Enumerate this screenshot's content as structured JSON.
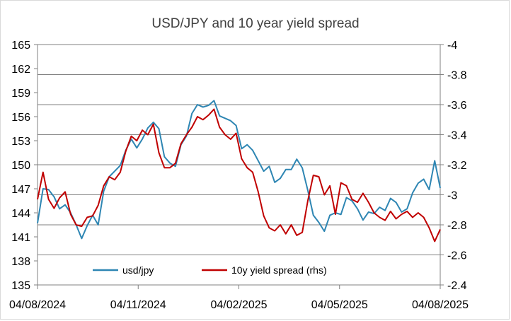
{
  "chart_data": {
    "type": "line",
    "title": "USD/JPY and 10 year yield spread",
    "x_tick_labels": [
      "04/08/2024",
      "04/11/2024",
      "04/02/2025",
      "04/05/2025",
      "04/08/2025"
    ],
    "x_range": [
      "2024-08-04",
      "2025-08-04"
    ],
    "y_left": {
      "range": [
        135,
        165
      ],
      "ticks": [
        "135",
        "138",
        "141",
        "144",
        "147",
        "150",
        "153",
        "156",
        "159",
        "162",
        "165"
      ]
    },
    "y_right": {
      "range": [
        -4.0,
        -2.4
      ],
      "ticks": [
        "-2.4",
        "-2.6",
        "-2.8",
        "-3",
        "-3.2",
        "-3.4",
        "-3.6",
        "-3.8",
        "-4"
      ],
      "reversed": true
    },
    "grid": "horizontal (right axis)",
    "legend_position": "bottom-inside",
    "series": [
      {
        "name": "usd/jpy",
        "axis": "left",
        "color": "#2e86b3",
        "points": [
          [
            "2024-08-04",
            142.7
          ],
          [
            "2024-08-09",
            147.0
          ],
          [
            "2024-08-14",
            146.9
          ],
          [
            "2024-08-19",
            146.0
          ],
          [
            "2024-08-24",
            144.5
          ],
          [
            "2024-08-29",
            145.0
          ],
          [
            "2024-09-03",
            144.0
          ],
          [
            "2024-09-08",
            142.5
          ],
          [
            "2024-09-13",
            140.8
          ],
          [
            "2024-09-18",
            142.4
          ],
          [
            "2024-09-23",
            143.7
          ],
          [
            "2024-09-28",
            142.5
          ],
          [
            "2024-10-03",
            146.7
          ],
          [
            "2024-10-08",
            148.5
          ],
          [
            "2024-10-13",
            149.2
          ],
          [
            "2024-10-18",
            149.9
          ],
          [
            "2024-10-23",
            151.8
          ],
          [
            "2024-10-28",
            153.2
          ],
          [
            "2024-11-02",
            152.1
          ],
          [
            "2024-11-07",
            153.2
          ],
          [
            "2024-11-12",
            154.6
          ],
          [
            "2024-11-17",
            155.3
          ],
          [
            "2024-11-22",
            154.5
          ],
          [
            "2024-11-27",
            151.0
          ],
          [
            "2024-12-02",
            150.2
          ],
          [
            "2024-12-07",
            149.8
          ],
          [
            "2024-12-12",
            152.5
          ],
          [
            "2024-12-17",
            153.6
          ],
          [
            "2024-12-22",
            156.4
          ],
          [
            "2024-12-27",
            157.5
          ],
          [
            "2025-01-01",
            157.2
          ],
          [
            "2025-01-06",
            157.4
          ],
          [
            "2025-01-11",
            158.0
          ],
          [
            "2025-01-16",
            156.1
          ],
          [
            "2025-01-21",
            155.8
          ],
          [
            "2025-01-26",
            155.5
          ],
          [
            "2025-01-31",
            154.9
          ],
          [
            "2025-02-05",
            152.0
          ],
          [
            "2025-02-10",
            152.5
          ],
          [
            "2025-02-15",
            151.8
          ],
          [
            "2025-02-20",
            150.5
          ],
          [
            "2025-02-25",
            149.2
          ],
          [
            "2025-03-02",
            149.8
          ],
          [
            "2025-03-07",
            147.8
          ],
          [
            "2025-03-12",
            148.3
          ],
          [
            "2025-03-17",
            149.4
          ],
          [
            "2025-03-22",
            149.4
          ],
          [
            "2025-03-27",
            150.7
          ],
          [
            "2025-04-01",
            149.6
          ],
          [
            "2025-04-06",
            146.8
          ],
          [
            "2025-04-11",
            143.7
          ],
          [
            "2025-04-16",
            142.8
          ],
          [
            "2025-04-21",
            141.7
          ],
          [
            "2025-04-26",
            143.7
          ],
          [
            "2025-05-01",
            144.0
          ],
          [
            "2025-05-06",
            143.8
          ],
          [
            "2025-05-11",
            145.9
          ],
          [
            "2025-05-16",
            145.5
          ],
          [
            "2025-05-21",
            144.5
          ],
          [
            "2025-05-26",
            143.1
          ],
          [
            "2025-05-31",
            144.1
          ],
          [
            "2025-06-05",
            143.9
          ],
          [
            "2025-06-10",
            144.7
          ],
          [
            "2025-06-15",
            144.3
          ],
          [
            "2025-06-20",
            145.8
          ],
          [
            "2025-06-25",
            145.3
          ],
          [
            "2025-06-30",
            144.1
          ],
          [
            "2025-07-05",
            144.5
          ],
          [
            "2025-07-10",
            146.5
          ],
          [
            "2025-07-15",
            147.7
          ],
          [
            "2025-07-20",
            148.2
          ],
          [
            "2025-07-25",
            146.9
          ],
          [
            "2025-07-30",
            150.5
          ],
          [
            "2025-08-04",
            147.1
          ]
        ]
      },
      {
        "name": "10y yield spread (rhs)",
        "axis": "right",
        "color": "#c00000",
        "points": [
          [
            "2024-08-04",
            -2.97
          ],
          [
            "2024-08-09",
            -3.15
          ],
          [
            "2024-08-14",
            -2.97
          ],
          [
            "2024-08-19",
            -2.91
          ],
          [
            "2024-08-24",
            -2.98
          ],
          [
            "2024-08-29",
            -3.02
          ],
          [
            "2024-09-03",
            -2.87
          ],
          [
            "2024-09-08",
            -2.8
          ],
          [
            "2024-09-13",
            -2.79
          ],
          [
            "2024-09-18",
            -2.85
          ],
          [
            "2024-09-23",
            -2.86
          ],
          [
            "2024-09-28",
            -2.93
          ],
          [
            "2024-10-03",
            -3.06
          ],
          [
            "2024-10-08",
            -3.12
          ],
          [
            "2024-10-13",
            -3.1
          ],
          [
            "2024-10-18",
            -3.15
          ],
          [
            "2024-10-23",
            -3.29
          ],
          [
            "2024-10-28",
            -3.39
          ],
          [
            "2024-11-02",
            -3.36
          ],
          [
            "2024-11-07",
            -3.43
          ],
          [
            "2024-11-12",
            -3.4
          ],
          [
            "2024-11-17",
            -3.47
          ],
          [
            "2024-11-22",
            -3.28
          ],
          [
            "2024-11-27",
            -3.18
          ],
          [
            "2024-12-02",
            -3.18
          ],
          [
            "2024-12-07",
            -3.21
          ],
          [
            "2024-12-12",
            -3.34
          ],
          [
            "2024-12-17",
            -3.4
          ],
          [
            "2024-12-22",
            -3.45
          ],
          [
            "2024-12-27",
            -3.52
          ],
          [
            "2025-01-01",
            -3.5
          ],
          [
            "2025-01-06",
            -3.53
          ],
          [
            "2025-01-11",
            -3.57
          ],
          [
            "2025-01-16",
            -3.45
          ],
          [
            "2025-01-21",
            -3.4
          ],
          [
            "2025-01-26",
            -3.37
          ],
          [
            "2025-01-31",
            -3.41
          ],
          [
            "2025-02-05",
            -3.24
          ],
          [
            "2025-02-10",
            -3.18
          ],
          [
            "2025-02-15",
            -3.15
          ],
          [
            "2025-02-20",
            -3.02
          ],
          [
            "2025-02-25",
            -2.86
          ],
          [
            "2025-03-02",
            -2.78
          ],
          [
            "2025-03-07",
            -2.76
          ],
          [
            "2025-03-12",
            -2.8
          ],
          [
            "2025-03-17",
            -2.74
          ],
          [
            "2025-03-22",
            -2.8
          ],
          [
            "2025-03-27",
            -2.73
          ],
          [
            "2025-04-01",
            -2.75
          ],
          [
            "2025-04-06",
            -2.96
          ],
          [
            "2025-04-11",
            -3.13
          ],
          [
            "2025-04-16",
            -3.12
          ],
          [
            "2025-04-21",
            -3.0
          ],
          [
            "2025-04-26",
            -3.06
          ],
          [
            "2025-05-01",
            -2.87
          ],
          [
            "2025-05-06",
            -3.08
          ],
          [
            "2025-05-11",
            -3.06
          ],
          [
            "2025-05-16",
            -2.97
          ],
          [
            "2025-05-21",
            -2.95
          ],
          [
            "2025-05-26",
            -3.01
          ],
          [
            "2025-05-31",
            -2.95
          ],
          [
            "2025-06-05",
            -2.88
          ],
          [
            "2025-06-10",
            -2.85
          ],
          [
            "2025-06-15",
            -2.83
          ],
          [
            "2025-06-20",
            -2.89
          ],
          [
            "2025-06-25",
            -2.84
          ],
          [
            "2025-06-30",
            -2.87
          ],
          [
            "2025-07-05",
            -2.89
          ],
          [
            "2025-07-10",
            -2.85
          ],
          [
            "2025-07-15",
            -2.88
          ],
          [
            "2025-07-20",
            -2.85
          ],
          [
            "2025-07-25",
            -2.78
          ],
          [
            "2025-07-30",
            -2.69
          ],
          [
            "2025-08-04",
            -2.77
          ]
        ]
      }
    ]
  }
}
